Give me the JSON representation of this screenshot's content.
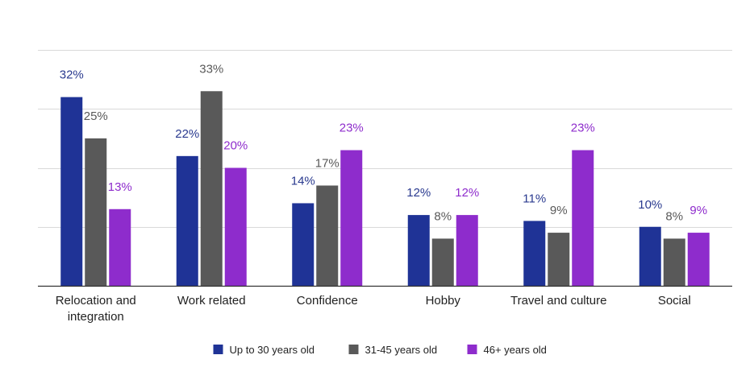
{
  "chart_data": {
    "type": "bar",
    "categories": [
      [
        "Relocation and",
        "integration"
      ],
      [
        "Work related"
      ],
      [
        "Confidence"
      ],
      [
        "Hobby"
      ],
      [
        "Travel and culture"
      ],
      [
        "Social"
      ]
    ],
    "series": [
      {
        "name": "Up to 30 years old",
        "color": "#1f3396",
        "label_color": "#2a3a8f",
        "values": [
          32,
          22,
          14,
          12,
          11,
          10
        ],
        "labels": [
          "32%",
          "22%",
          "14%",
          "12%",
          "11%",
          "10%"
        ]
      },
      {
        "name": "31-45 years old",
        "color": "#595959",
        "label_color": "#595959",
        "values": [
          25,
          33,
          17,
          8,
          9,
          8
        ],
        "labels": [
          "25%",
          "33%",
          "17%",
          "8%",
          "9%",
          "8%"
        ]
      },
      {
        "name": "46+ years old",
        "color": "#8e2ccc",
        "label_color": "#8e2ccc",
        "values": [
          13,
          20,
          23,
          12,
          23,
          9
        ],
        "labels": [
          "13%",
          "20%",
          "23%",
          "12%",
          "23%",
          "9%"
        ]
      }
    ],
    "ylim": [
      0,
      40
    ],
    "gridlines": [
      10,
      20,
      30,
      40
    ],
    "grid": true,
    "legend_position": "bottom"
  }
}
